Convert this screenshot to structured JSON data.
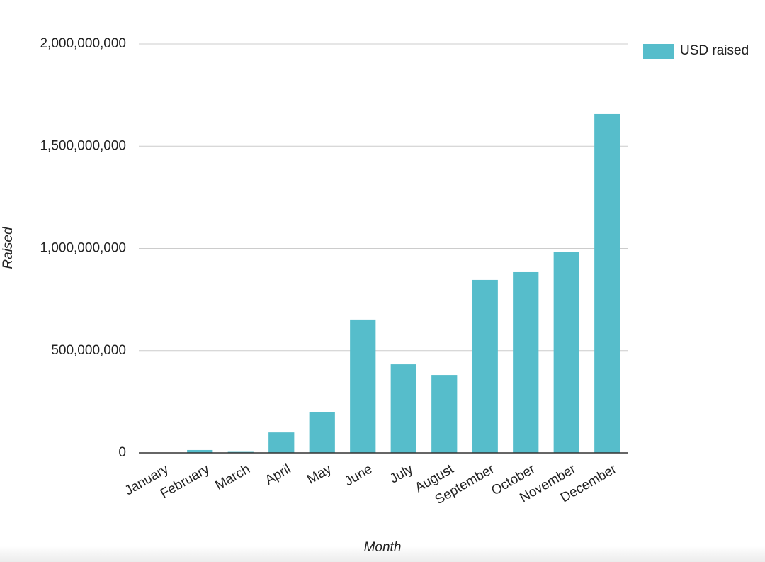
{
  "chart_data": {
    "type": "bar",
    "x_label": "Month",
    "y_label": "Raised",
    "categories": [
      "January",
      "February",
      "March",
      "April",
      "May",
      "June",
      "July",
      "August",
      "September",
      "October",
      "November",
      "December"
    ],
    "series": [
      {
        "name": "USD raised",
        "color": "#56bdcb",
        "values": [
          0,
          14000000,
          5000000,
          100000000,
          198000000,
          652000000,
          433000000,
          381000000,
          846000000,
          884000000,
          981000000,
          1657000000
        ]
      }
    ],
    "ylim": [
      0,
      2000000000
    ],
    "yticks": [
      0,
      {
        "value": 500000000,
        "label": "500,000,000"
      },
      {
        "value": 1000000000,
        "label": "1,000,000,000"
      },
      {
        "value": 1500000000,
        "label": "1,500,000,000"
      },
      {
        "value": 2000000000,
        "label": "2,000,000,000"
      }
    ],
    "grid": true,
    "legend": "right"
  }
}
